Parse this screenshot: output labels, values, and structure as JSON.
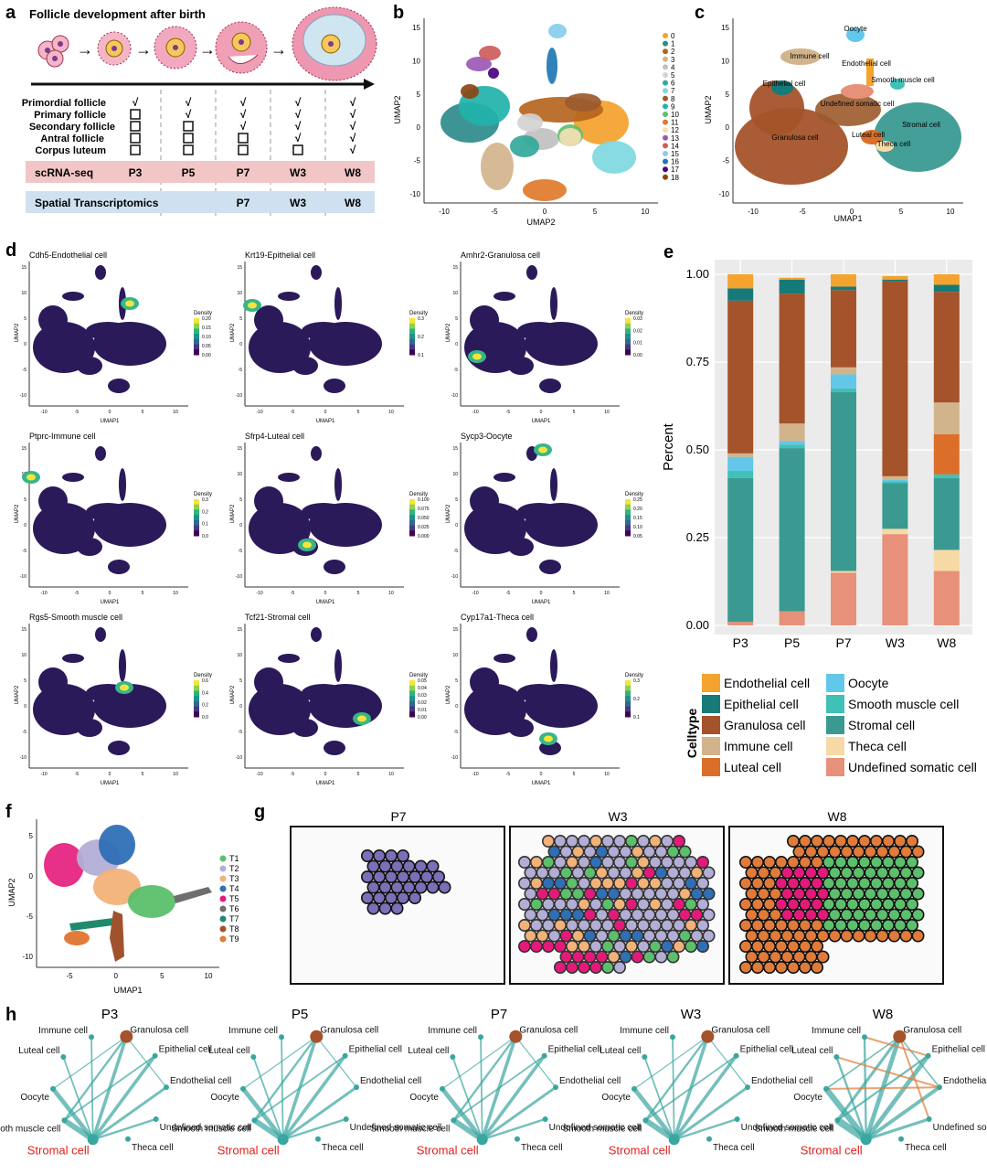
{
  "panel_letters": {
    "a": "a",
    "b": "b",
    "c": "c",
    "d": "d",
    "e": "e",
    "f": "f",
    "g": "g",
    "h": "h"
  },
  "panel_a": {
    "title": "Follicle development after birth",
    "stages": [
      "Primordial follicle",
      "Primary follicle",
      "Secondary follicle",
      "Antral follicle",
      "Corpus luteum"
    ],
    "check": "√",
    "presence": [
      [
        true,
        true,
        true,
        true,
        true
      ],
      [
        false,
        true,
        true,
        true,
        true
      ],
      [
        false,
        false,
        true,
        true,
        true
      ],
      [
        false,
        false,
        false,
        true,
        true
      ],
      [
        false,
        false,
        false,
        false,
        true
      ]
    ],
    "scrna_label": "scRNA-seq",
    "scrna_points": [
      "P3",
      "P5",
      "P7",
      "W3",
      "W8"
    ],
    "spatial_label": "Spatial Transcriptomics",
    "spatial_points": [
      "P7",
      "W3",
      "W8"
    ],
    "colors": {
      "scrna_band": "#f2c6c6",
      "spatial_band": "#cfe1f0"
    }
  },
  "panel_b": {
    "xlabel": "UMAP2",
    "ylabel": "UMAP2",
    "xticks": [
      "-10",
      "-5",
      "0",
      "5",
      "10"
    ],
    "yticks": [
      "15",
      "10",
      "5",
      "0",
      "-5",
      "-10"
    ],
    "clusters": [
      "0",
      "1",
      "2",
      "3",
      "4",
      "5",
      "6",
      "7",
      "8",
      "9",
      "10",
      "11",
      "12",
      "13",
      "14",
      "15",
      "16",
      "17",
      "18"
    ],
    "cluster_colors": [
      "#f4a12b",
      "#2e8b8b",
      "#b5651d",
      "#d2b48c",
      "#c0c0c0",
      "#d3d3d3",
      "#32a89b",
      "#7fd8e0",
      "#9c5a2c",
      "#20b2aa",
      "#5fbf6f",
      "#e07a2b",
      "#f5deb3",
      "#9b59b6",
      "#cd5c5c",
      "#87ceeb",
      "#1f77b4",
      "#4b0082",
      "#8b4513"
    ]
  },
  "panel_c": {
    "xlabel": "UMAP1",
    "ylabel": "UMAP2",
    "xticks": [
      "-10",
      "-5",
      "0",
      "5",
      "10"
    ],
    "yticks": [
      "15",
      "10",
      "5",
      "0",
      "-5",
      "-10"
    ],
    "labels": [
      "Oocyte",
      "Immune cell",
      "Endothelial cell",
      "Epithelial cell",
      "Smooth muscle cell",
      "Undefined somatic cell",
      "Stromal cell",
      "Granulosa cell",
      "Luteal cell",
      "Theca cell"
    ]
  },
  "panel_d": {
    "xlabel": "UMAP1",
    "ylabel": "UMAP2",
    "xticks": [
      "-10",
      "-5",
      "0",
      "5",
      "10"
    ],
    "yticks": [
      "15",
      "10",
      "5",
      "0",
      "-5",
      "-10"
    ],
    "legend_title": "Density",
    "plots": [
      {
        "title": "Cdh5-Endothelial cell",
        "legend": [
          "0.20",
          "0.15",
          "0.10",
          "0.05",
          "0.00"
        ]
      },
      {
        "title": "Krt19-Epithelial cell",
        "legend": [
          "0.3",
          "0.2",
          "0.1"
        ]
      },
      {
        "title": "Amhr2-Granulosa cell",
        "legend": [
          "0.03",
          "0.02",
          "0.01",
          "0.00"
        ]
      },
      {
        "title": "Ptprc-Immune cell",
        "legend": [
          "0.3",
          "0.2",
          "0.1",
          "0.0"
        ]
      },
      {
        "title": "Sfrp4-Luteal cell",
        "legend": [
          "0.100",
          "0.075",
          "0.050",
          "0.025",
          "0.000"
        ]
      },
      {
        "title": "Sycp3-Oocyte",
        "legend": [
          "0.25",
          "0.20",
          "0.15",
          "0.10",
          "0.05"
        ]
      },
      {
        "title": "Rgs5-Smooth muscle cell",
        "legend": [
          "0.6",
          "0.4",
          "0.2",
          "0.0"
        ]
      },
      {
        "title": "Tcf21-Stromal cell",
        "legend": [
          "0.05",
          "0.04",
          "0.03",
          "0.02",
          "0.01",
          "0.00"
        ]
      },
      {
        "title": "Cyp17a1-Theca cell",
        "legend": [
          "0.3",
          "0.2",
          "0.1"
        ]
      }
    ]
  },
  "chart_data": {
    "type": "bar",
    "stacked": true,
    "categories": [
      "P3",
      "P5",
      "P7",
      "W3",
      "W8"
    ],
    "ylabel": "Percent",
    "ylim": [
      0,
      1
    ],
    "yticks": [
      "0.00",
      "0.25",
      "0.50",
      "0.75",
      "1.00"
    ],
    "legend_title": "Celltype",
    "grid": true,
    "series": [
      {
        "name": "Undefined somatic cell",
        "color": "#e8917a",
        "values": [
          0.01,
          0.04,
          0.15,
          0.26,
          0.155
        ]
      },
      {
        "name": "Theca cell",
        "color": "#f7d9a6",
        "values": [
          0.0,
          0.0,
          0.005,
          0.015,
          0.06
        ]
      },
      {
        "name": "Stromal cell",
        "color": "#3a9a92",
        "values": [
          0.41,
          0.465,
          0.51,
          0.13,
          0.205
        ]
      },
      {
        "name": "Smooth muscle cell",
        "color": "#3fc1b5",
        "values": [
          0.02,
          0.01,
          0.01,
          0.005,
          0.01
        ]
      },
      {
        "name": "Oocyte",
        "color": "#63c7ea",
        "values": [
          0.04,
          0.01,
          0.04,
          0.005,
          0.0
        ]
      },
      {
        "name": "Luteal cell",
        "color": "#db6f2a",
        "values": [
          0.0,
          0.0,
          0.0,
          0.0,
          0.115
        ]
      },
      {
        "name": "Immune cell",
        "color": "#d2b48c",
        "values": [
          0.01,
          0.05,
          0.02,
          0.01,
          0.09
        ]
      },
      {
        "name": "Granulosa cell",
        "color": "#a4532a",
        "values": [
          0.435,
          0.37,
          0.22,
          0.555,
          0.315
        ]
      },
      {
        "name": "Epithelial cell",
        "color": "#167a78",
        "values": [
          0.035,
          0.04,
          0.01,
          0.005,
          0.02
        ]
      },
      {
        "name": "Endothelial cell",
        "color": "#f4a32e",
        "values": [
          0.04,
          0.005,
          0.035,
          0.01,
          0.03
        ]
      }
    ],
    "legend_order": [
      "Endothelial cell",
      "Oocyte",
      "Epithelial cell",
      "Smooth muscle cell",
      "Granulosa cell",
      "Stromal cell",
      "Immune cell",
      "Theca cell",
      "Luteal cell",
      "Undefined somatic cell"
    ]
  },
  "panel_f": {
    "xlabel": "UMAP1",
    "ylabel": "UMAP2",
    "xticks": [
      "-5",
      "0",
      "5",
      "10"
    ],
    "yticks": [
      "5",
      "0",
      "-5",
      "-10"
    ],
    "clusters": [
      "T1",
      "T2",
      "T3",
      "T4",
      "T5",
      "T6",
      "T7",
      "T8",
      "T9"
    ],
    "cluster_colors": [
      "#5cbf6c",
      "#b3aed6",
      "#f2b278",
      "#2f6fb6",
      "#e41a7a",
      "#6e6e6e",
      "#1f8a6e",
      "#a0522d",
      "#e07b39"
    ]
  },
  "panel_g": {
    "sections": [
      "P7",
      "W3",
      "W8"
    ]
  },
  "panel_h": {
    "networks": [
      {
        "title": "P3"
      },
      {
        "title": "P5"
      },
      {
        "title": "P7"
      },
      {
        "title": "W3"
      },
      {
        "title": "W8"
      }
    ],
    "nodes": [
      "Granulosa cell",
      "Epithelial cell",
      "Endothelial cell",
      "Undefined somatic cell",
      "Theca cell",
      "Stromal cell",
      "Smooth muscle cell",
      "Oocyte",
      "Luteal cell",
      "Immune cell"
    ],
    "highlight_color": "#e3201b",
    "edge_color": "#3aa6a0"
  }
}
